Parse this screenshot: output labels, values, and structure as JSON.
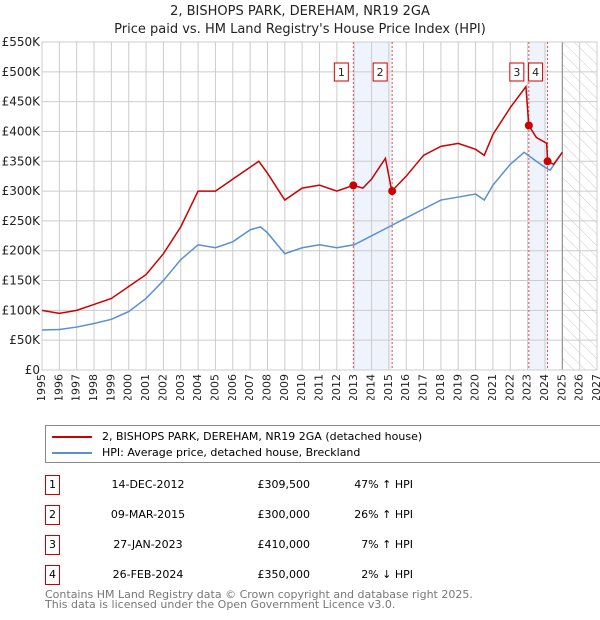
{
  "title": "2, BISHOPS PARK, DEREHAM, NR19 2GA",
  "subtitle": "Price paid vs. HM Land Registry's House Price Index (HPI)",
  "chart_data": {
    "type": "line",
    "xlim": [
      1995,
      2027
    ],
    "ylim": [
      0,
      550000
    ],
    "x_ticks": [
      1995,
      1996,
      1997,
      1998,
      1999,
      2000,
      2001,
      2002,
      2003,
      2004,
      2005,
      2006,
      2007,
      2008,
      2009,
      2010,
      2011,
      2012,
      2013,
      2014,
      2015,
      2016,
      2017,
      2018,
      2019,
      2020,
      2021,
      2022,
      2023,
      2024,
      2025,
      2026,
      2027
    ],
    "y_ticks": [
      {
        "v": 0,
        "label": "£0"
      },
      {
        "v": 50000,
        "label": "£50K"
      },
      {
        "v": 100000,
        "label": "£100K"
      },
      {
        "v": 150000,
        "label": "£150K"
      },
      {
        "v": 200000,
        "label": "£200K"
      },
      {
        "v": 250000,
        "label": "£250K"
      },
      {
        "v": 300000,
        "label": "£300K"
      },
      {
        "v": 350000,
        "label": "£350K"
      },
      {
        "v": 400000,
        "label": "£400K"
      },
      {
        "v": 450000,
        "label": "£450K"
      },
      {
        "v": 500000,
        "label": "£500K"
      },
      {
        "v": 550000,
        "label": "£550K"
      }
    ],
    "grid": true,
    "forecast_hatch_from": 2025,
    "shaded_spans": [
      [
        2012.95,
        2015.19
      ],
      [
        2023.07,
        2024.15
      ]
    ],
    "series": [
      {
        "name": "2, BISHOPS PARK, DEREHAM, NR19 2GA (detached house)",
        "color": "#cc0000",
        "x": [
          1995,
          1996,
          1997,
          1998,
          1999,
          2000,
          2001,
          2002,
          2003,
          2004,
          2005,
          2006,
          2007,
          2007.5,
          2008,
          2009,
          2010,
          2011,
          2012,
          2012.95,
          2013.5,
          2014,
          2014.8,
          2015.17,
          2016,
          2017,
          2018,
          2019,
          2020,
          2020.5,
          2021,
          2022,
          2022.9,
          2023.07,
          2023.5,
          2024.1,
          2024.15,
          2024.5,
          2025
        ],
        "y": [
          100000,
          95000,
          100000,
          110000,
          120000,
          140000,
          160000,
          195000,
          240000,
          300000,
          300000,
          320000,
          340000,
          350000,
          330000,
          285000,
          305000,
          310000,
          300000,
          309500,
          305000,
          320000,
          355000,
          300000,
          325000,
          360000,
          375000,
          380000,
          370000,
          360000,
          395000,
          440000,
          475000,
          410000,
          390000,
          380000,
          350000,
          345000,
          365000
        ]
      },
      {
        "name": "HPI: Average price, detached house, Breckland",
        "color": "#5b8fd0",
        "x": [
          1995,
          1996,
          1997,
          1998,
          1999,
          2000,
          2001,
          2002,
          2003,
          2004,
          2005,
          2006,
          2007,
          2007.6,
          2008,
          2009,
          2010,
          2011,
          2012,
          2013,
          2014,
          2015,
          2016,
          2017,
          2018,
          2019,
          2020,
          2020.5,
          2021,
          2022,
          2022.8,
          2023.5,
          2024,
          2024.3,
          2025
        ],
        "y": [
          67000,
          68000,
          72000,
          78000,
          85000,
          98000,
          120000,
          150000,
          185000,
          210000,
          205000,
          215000,
          235000,
          240000,
          230000,
          195000,
          205000,
          210000,
          205000,
          210000,
          225000,
          240000,
          255000,
          270000,
          285000,
          290000,
          295000,
          285000,
          310000,
          345000,
          365000,
          350000,
          340000,
          335000,
          365000
        ]
      }
    ],
    "sales": [
      {
        "n": "1",
        "date": "14-DEC-2012",
        "price": "£309,500",
        "hpi": "47% ↑ HPI",
        "x": 2012.95,
        "y": 309500
      },
      {
        "n": "2",
        "date": "09-MAR-2015",
        "price": "£300,000",
        "hpi": "26% ↑ HPI",
        "x": 2015.19,
        "y": 300000
      },
      {
        "n": "3",
        "date": "27-JAN-2023",
        "price": "£410,000",
        "hpi": "7% ↑ HPI",
        "x": 2023.07,
        "y": 410000
      },
      {
        "n": "4",
        "date": "26-FEB-2024",
        "price": "£350,000",
        "hpi": "2% ↓ HPI",
        "x": 2024.15,
        "y": 350000
      }
    ]
  },
  "footer": [
    "Contains HM Land Registry data © Crown copyright and database right 2025.",
    "This data is licensed under the Open Government Licence v3.0."
  ]
}
